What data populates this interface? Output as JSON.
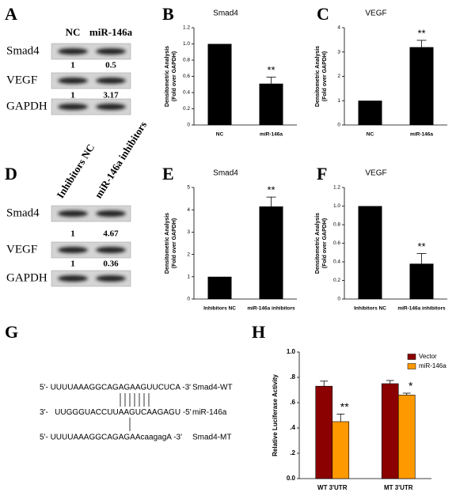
{
  "figure": {
    "blots": [
      {
        "panel": "A",
        "columns": [
          "NC",
          "miR-146a"
        ],
        "rows": [
          {
            "name": "Smad4",
            "quantities": [
              1,
              0.5
            ]
          },
          {
            "name": "VEGF",
            "quantities": [
              1,
              3.17
            ]
          },
          {
            "name": "GAPDH"
          }
        ]
      },
      {
        "panel": "D",
        "columns": [
          "Inhibitors NC",
          "miR-146a inhibitors"
        ],
        "rows": [
          {
            "name": "Smad4",
            "quantities": [
              1,
              4.67
            ]
          },
          {
            "name": "VEGF",
            "quantities": [
              1,
              0.36
            ]
          },
          {
            "name": "GAPDH"
          }
        ]
      }
    ],
    "sequence": {
      "panel": "G",
      "lines": [
        {
          "text": "5'- UUUUAAAGGCAGAGAAGUUCUCA -3'",
          "name": "Smad4-WT"
        },
        {
          "text": "3'-   UUGGGUACCUUAAGUCAAGAGU -5'",
          "name": "miR-146a"
        },
        {
          "text": "5'- UUUUAAAGGCAGAGAAcaagagA -3'",
          "name": "Smad4-MT"
        }
      ]
    }
  },
  "chart_data": [
    {
      "type": "bar",
      "panel": "B",
      "title": "Smad4",
      "ylabel": [
        "Densitometric Analysis",
        "(Fold over GAPDH)"
      ],
      "categories": [
        "NC",
        "miR-146a"
      ],
      "values": [
        1,
        0.51
      ],
      "errors": [
        null,
        0.08
      ],
      "significance": [
        null,
        "**"
      ],
      "color": "#000000",
      "ylim": [
        0,
        1.2
      ],
      "yticks": [
        0,
        0.2,
        0.4,
        0.6,
        0.8,
        {
          "value": 1,
          "label": "1.0"
        },
        1.2
      ]
    },
    {
      "type": "bar",
      "panel": "C",
      "title": "VEGF",
      "ylabel": [
        "Densitometric Analysis",
        "(Fold over GAPDH)"
      ],
      "categories": [
        "NC",
        "miR-146a"
      ],
      "values": [
        1,
        3.2
      ],
      "errors": [
        null,
        0.28
      ],
      "significance": [
        null,
        "**"
      ],
      "color": "#000000",
      "ylim": [
        0,
        4
      ],
      "yticks": [
        0,
        1,
        2,
        3,
        4
      ]
    },
    {
      "type": "bar",
      "panel": "E",
      "title": "Smad4",
      "ylabel": [
        "Densitometric Analysis",
        "(Fold over GAPDH)"
      ],
      "categories": [
        "Inhibitors NC",
        "miR-146a inhibitors"
      ],
      "values": [
        1,
        4.15
      ],
      "errors": [
        null,
        0.42
      ],
      "significance": [
        null,
        "**"
      ],
      "color": "#000000",
      "ylim": [
        0,
        5
      ],
      "yticks": [
        0,
        1,
        2,
        3,
        4,
        5
      ]
    },
    {
      "type": "bar",
      "panel": "F",
      "title": "VEGF",
      "ylabel": [
        "Densitometric Analysis",
        "(Fold over GAPDH)"
      ],
      "categories": [
        "Inhibitors NC",
        "miR-146a inhibitors"
      ],
      "values": [
        1,
        0.38
      ],
      "errors": [
        null,
        0.11
      ],
      "significance": [
        null,
        "**"
      ],
      "color": "#000000",
      "ylim": [
        0,
        1.2
      ],
      "yticks": [
        0,
        0.2,
        0.4,
        0.6,
        0.8,
        {
          "value": 1,
          "label": "1.0"
        },
        1.2
      ]
    },
    {
      "type": "grouped_bar",
      "panel": "H",
      "ylabel": "Relative Luciferase Activity",
      "categories": [
        "WT 3'UTR",
        "MT 3'UTR"
      ],
      "series": [
        {
          "name": "Vector",
          "color": "#8b0000",
          "values": [
            0.73,
            0.75
          ],
          "errors": [
            0.04,
            0.025
          ]
        },
        {
          "name": "miR-146a",
          "color": "#ff9900",
          "values": [
            0.45,
            0.66
          ],
          "errors": [
            0.06,
            0.015
          ],
          "significance": [
            "**",
            "*"
          ]
        }
      ],
      "ylim": [
        0,
        1
      ],
      "yticks": [
        {
          "value": 0,
          "label": "0.0"
        },
        {
          "value": 0.2,
          "label": ".2"
        },
        {
          "value": 0.4,
          "label": ".4"
        },
        {
          "value": 0.6,
          "label": ".6"
        },
        {
          "value": 0.8,
          "label": ".8"
        },
        {
          "value": 1,
          "label": "1.0"
        }
      ],
      "legend": "top-right"
    }
  ]
}
